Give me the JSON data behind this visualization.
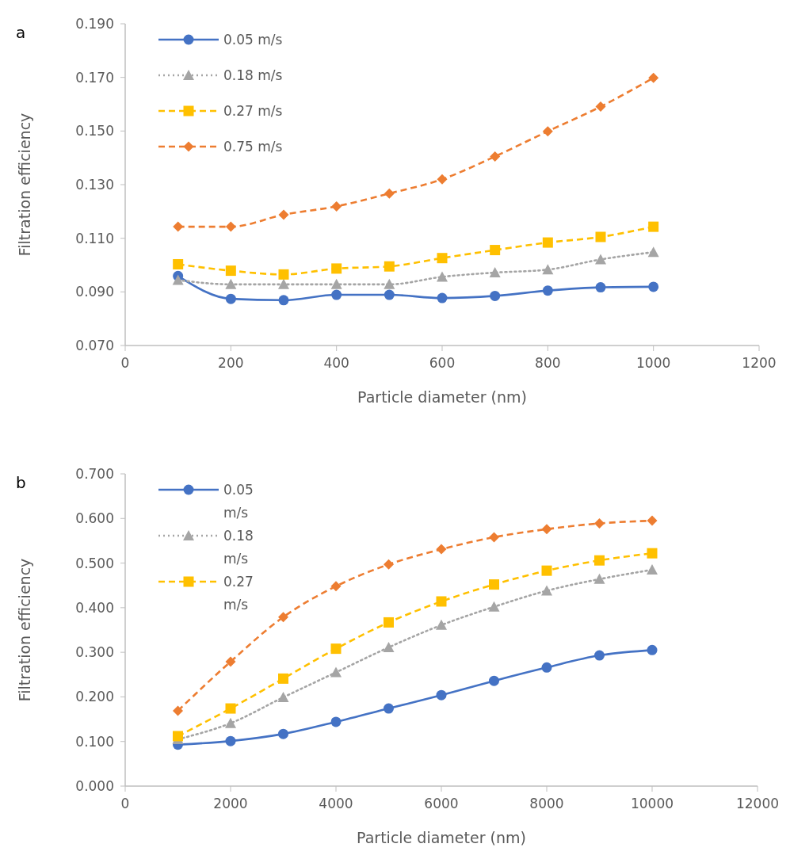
{
  "chart_data": [
    {
      "type": "line",
      "title": "a",
      "xlabel": "Particle diameter (nm)",
      "ylabel": "Filtration efficiency",
      "x": [
        100,
        200,
        300,
        400,
        500,
        600,
        700,
        800,
        900,
        1000
      ],
      "xlim": [
        0,
        1200
      ],
      "xticks": [
        0,
        200,
        400,
        600,
        800,
        1000,
        1200
      ],
      "ylim": [
        0.07,
        0.19
      ],
      "yticks": [
        {
          "value": 0.07,
          "label": "0.070"
        },
        {
          "value": 0.09,
          "label": "0.090"
        },
        {
          "value": 0.11,
          "label": "0.110"
        },
        {
          "value": 0.13,
          "label": "0.130"
        },
        {
          "value": 0.15,
          "label": "0.150"
        },
        {
          "value": 0.17,
          "label": "0.170"
        },
        {
          "value": 0.19,
          "label": "0.190"
        }
      ],
      "grid": false,
      "legend": "top left",
      "series": [
        {
          "name": "0.05 m/s",
          "color": "#4472c4",
          "marker": "circle",
          "line_style": "solid",
          "values": [
            0.0959,
            0.0874,
            0.0869,
            0.0889,
            0.0889,
            0.0877,
            0.0885,
            0.0905,
            0.0917,
            0.0919
          ]
        },
        {
          "name": "0.18 m/s",
          "color": "#a5a5a5",
          "marker": "triangle",
          "line_style": "dotted",
          "values": [
            0.0944,
            0.0928,
            0.0928,
            0.0928,
            0.0928,
            0.0956,
            0.0972,
            0.0983,
            0.1021,
            0.1048
          ]
        },
        {
          "name": "0.27 m/s",
          "color": "#ffc000",
          "marker": "square",
          "line_style": "dashed",
          "values": [
            0.1003,
            0.0979,
            0.0965,
            0.0987,
            0.0995,
            0.1026,
            0.1056,
            0.1084,
            0.1105,
            0.1143
          ]
        },
        {
          "name": "0.75 m/s",
          "color": "#ed7d31",
          "marker": "diamond",
          "line_style": "dashed",
          "values": [
            0.1143,
            0.1143,
            0.1188,
            0.1219,
            0.1267,
            0.132,
            0.1405,
            0.1499,
            0.1591,
            0.1698
          ]
        }
      ]
    },
    {
      "type": "line",
      "title": "b",
      "xlabel": "Particle diameter (nm)",
      "ylabel": "Filtration efficiency",
      "x": [
        1000,
        2000,
        3000,
        4000,
        5000,
        6000,
        7000,
        8000,
        9000,
        10000
      ],
      "xlim": [
        0,
        12000
      ],
      "xticks": [
        0,
        2000,
        4000,
        6000,
        8000,
        10000,
        12000
      ],
      "ylim": [
        0,
        0.7
      ],
      "yticks": [
        {
          "value": 0,
          "label": "0.000"
        },
        {
          "value": 0.1,
          "label": "0.100"
        },
        {
          "value": 0.2,
          "label": "0.200"
        },
        {
          "value": 0.3,
          "label": "0.300"
        },
        {
          "value": 0.4,
          "label": "0.400"
        },
        {
          "value": 0.5,
          "label": "0.500"
        },
        {
          "value": 0.6,
          "label": "0.600"
        },
        {
          "value": 0.7,
          "label": "0.700"
        }
      ],
      "grid": false,
      "legend": "top left",
      "series": [
        {
          "name": "0.05 m/s",
          "color": "#4472c4",
          "marker": "circle",
          "line_style": "solid",
          "values": [
            0.093,
            0.101,
            0.117,
            0.144,
            0.174,
            0.204,
            0.236,
            0.266,
            0.293,
            0.305
          ]
        },
        {
          "name": "0.18 m/s",
          "color": "#a5a5a5",
          "marker": "triangle",
          "line_style": "dotted",
          "values": [
            0.105,
            0.141,
            0.199,
            0.255,
            0.311,
            0.361,
            0.402,
            0.438,
            0.464,
            0.485
          ]
        },
        {
          "name": "0.27 m/s",
          "color": "#ffc000",
          "marker": "square",
          "line_style": "dashed",
          "values": [
            0.112,
            0.174,
            0.241,
            0.308,
            0.367,
            0.414,
            0.452,
            0.483,
            0.506,
            0.522
          ]
        },
        {
          "color": "#ed7d31",
          "marker": "diamond",
          "line_style": "dashed",
          "values": [
            0.169,
            0.279,
            0.379,
            0.448,
            0.497,
            0.531,
            0.558,
            0.576,
            0.589,
            0.595
          ]
        }
      ]
    }
  ]
}
